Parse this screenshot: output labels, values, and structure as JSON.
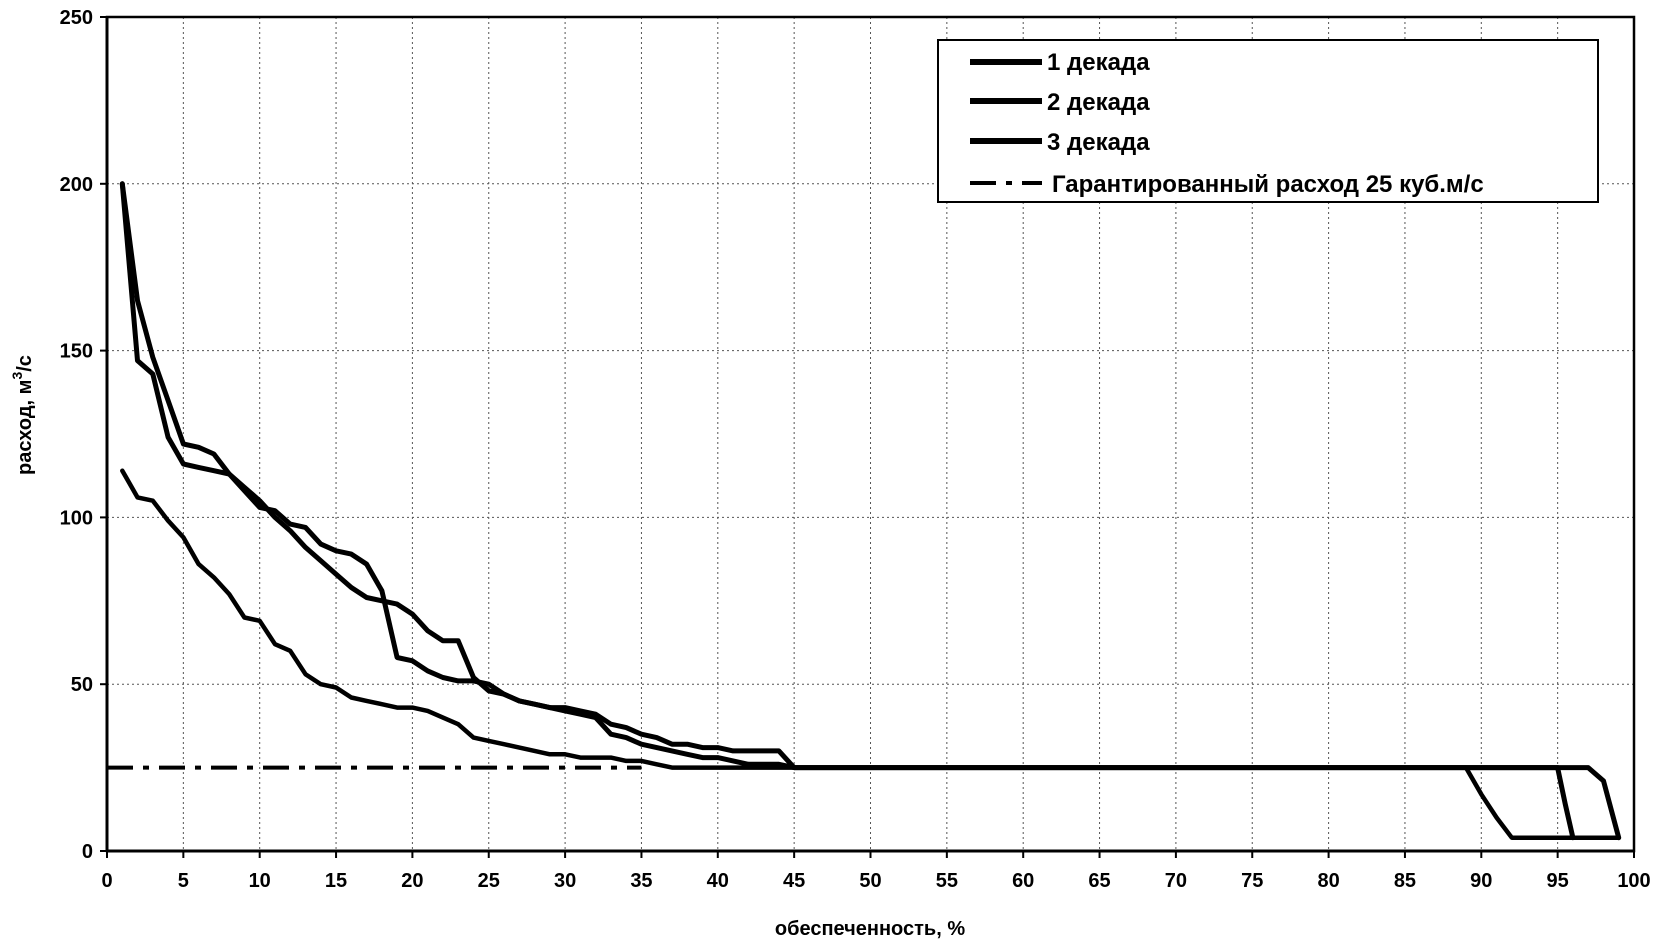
{
  "chart_data": {
    "type": "line",
    "xlabel": "обеспеченность, %",
    "ylabel_main": "расход, м",
    "ylabel_sup": "3",
    "ylabel_tail": "/с",
    "xlim": [
      0,
      100
    ],
    "ylim": [
      0,
      250
    ],
    "xticks": [
      0,
      5,
      10,
      15,
      20,
      25,
      30,
      35,
      40,
      45,
      50,
      55,
      60,
      65,
      70,
      75,
      80,
      85,
      90,
      95,
      100
    ],
    "yticks": [
      0,
      50,
      100,
      150,
      200,
      250
    ],
    "grid": true,
    "legend_position": "top-right",
    "series": [
      {
        "name": "1 декада",
        "style": "solid",
        "x": [
          1,
          2,
          3,
          4,
          5,
          6,
          7,
          8,
          9,
          10,
          11,
          12,
          13,
          14,
          15,
          16,
          17,
          18,
          19,
          20,
          21,
          22,
          23,
          24,
          25,
          26,
          27,
          28,
          29,
          30,
          31,
          32,
          33,
          34,
          35,
          36,
          37,
          38,
          39,
          40,
          41,
          42,
          43,
          44,
          45,
          50,
          60,
          70,
          80,
          90,
          95,
          97,
          98,
          99
        ],
        "values": [
          200,
          165,
          148,
          135,
          122,
          121,
          119,
          113,
          108,
          103,
          102,
          98,
          97,
          92,
          90,
          89,
          86,
          78,
          58,
          57,
          54,
          52,
          51,
          51,
          50,
          47,
          45,
          44,
          43,
          43,
          42,
          41,
          38,
          37,
          35,
          34,
          32,
          32,
          31,
          31,
          30,
          30,
          30,
          30,
          25,
          25,
          25,
          25,
          25,
          25,
          25,
          25,
          21,
          4
        ]
      },
      {
        "name": "2 декада",
        "style": "solid",
        "x": [
          1,
          2,
          3,
          4,
          5,
          6,
          7,
          8,
          9,
          10,
          11,
          12,
          13,
          14,
          15,
          16,
          17,
          18,
          19,
          20,
          21,
          22,
          23,
          24,
          25,
          26,
          27,
          28,
          29,
          30,
          31,
          32,
          33,
          34,
          35,
          36,
          37,
          38,
          39,
          40,
          41,
          42,
          43,
          44,
          45,
          50,
          60,
          70,
          80,
          90,
          94,
          95,
          95.5,
          96
        ],
        "values": [
          200,
          147,
          143,
          124,
          116,
          115,
          114,
          113,
          109,
          105,
          100,
          96,
          91,
          87,
          83,
          79,
          76,
          75,
          74,
          71,
          66,
          63,
          63,
          52,
          48,
          47,
          45,
          44,
          43,
          42,
          41,
          40,
          35,
          34,
          32,
          31,
          30,
          29,
          28,
          28,
          27,
          26,
          26,
          26,
          25,
          25,
          25,
          25,
          25,
          25,
          25,
          25,
          14,
          4
        ]
      },
      {
        "name": "3 декада",
        "style": "solid",
        "x": [
          1,
          2,
          3,
          4,
          5,
          6,
          7,
          8,
          9,
          10,
          11,
          12,
          13,
          14,
          15,
          16,
          17,
          18,
          19,
          20,
          21,
          22,
          23,
          24,
          25,
          26,
          27,
          28,
          29,
          30,
          31,
          32,
          33,
          34,
          35,
          36,
          37,
          40,
          45,
          50,
          60,
          70,
          80,
          88,
          89,
          90,
          91,
          92,
          99
        ],
        "values": [
          114,
          106,
          105,
          99,
          94,
          86,
          82,
          77,
          70,
          69,
          62,
          60,
          53,
          50,
          49,
          46,
          45,
          44,
          43,
          43,
          42,
          40,
          38,
          34,
          33,
          32,
          31,
          30,
          29,
          29,
          28,
          28,
          28,
          27,
          27,
          26,
          25,
          25,
          25,
          25,
          25,
          25,
          25,
          25,
          25,
          17,
          10,
          4,
          4
        ]
      },
      {
        "name": "Гарантированный расход 25 куб.м/с",
        "style": "dash-dot",
        "x": [
          0,
          35
        ],
        "values": [
          25,
          25
        ]
      }
    ]
  }
}
